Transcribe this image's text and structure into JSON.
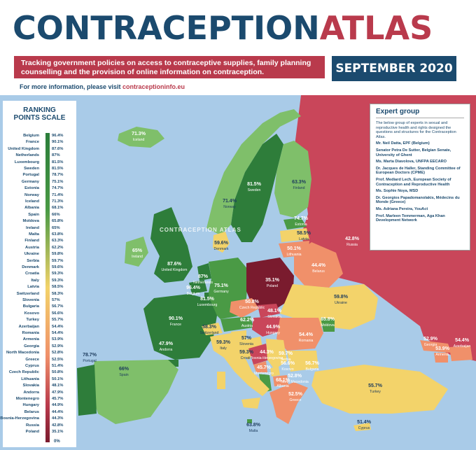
{
  "header": {
    "title_part1": "CONTRACEPTION",
    "title_part2": "ATLAS",
    "banner_text": "Tracking government policies on access to contraceptive supplies, family planning counselling and the provision of online information on contraception.",
    "date": "SEPTEMBER 2020",
    "info_prefix": "For more information, please visit ",
    "info_link": "contraceptioninfo.eu"
  },
  "watermark": "CONTRACEPTION ATLAS",
  "ranking": {
    "heading_line1": "RANKING",
    "heading_line2": "POINTS SCALE",
    "zero_label": "0%",
    "rows": [
      {
        "country": "Belgium",
        "value": "96.4%"
      },
      {
        "country": "France",
        "value": "90.1%"
      },
      {
        "country": "United Kingdom",
        "value": "87.6%"
      },
      {
        "country": "Netherlands",
        "value": "87%"
      },
      {
        "country": "Luxembourg",
        "value": "81.5%"
      },
      {
        "country": "Sweden",
        "value": "81.5%"
      },
      {
        "country": "Portugal",
        "value": "78.7%"
      },
      {
        "country": "Germany",
        "value": "75.1%"
      },
      {
        "country": "Estonia",
        "value": "74.7%"
      },
      {
        "country": "Norway",
        "value": "71.4%"
      },
      {
        "country": "Iceland",
        "value": "71.3%"
      },
      {
        "country": "Albania",
        "value": "68.1%"
      },
      {
        "country": "Spain",
        "value": "66%"
      },
      {
        "country": "Moldova",
        "value": "65.8%"
      },
      {
        "country": "Ireland",
        "value": "65%"
      },
      {
        "country": "Malta",
        "value": "63.8%"
      },
      {
        "country": "Finland",
        "value": "63.3%"
      },
      {
        "country": "Austria",
        "value": "62.2%"
      },
      {
        "country": "Ukraine",
        "value": "59.8%"
      },
      {
        "country": "Serbia",
        "value": "59.7%"
      },
      {
        "country": "Denmark",
        "value": "59.6%"
      },
      {
        "country": "Croatia",
        "value": "59.3%"
      },
      {
        "country": "Italy",
        "value": "59.3%"
      },
      {
        "country": "Latvia",
        "value": "58.5%"
      },
      {
        "country": "Switzerland",
        "value": "58.3%"
      },
      {
        "country": "Slovenia",
        "value": "57%"
      },
      {
        "country": "Bulgaria",
        "value": "56.7%"
      },
      {
        "country": "Kosovo",
        "value": "56.6%"
      },
      {
        "country": "Turkey",
        "value": "55.7%"
      },
      {
        "country": "Azerbaijan",
        "value": "54.4%"
      },
      {
        "country": "Romania",
        "value": "54.4%"
      },
      {
        "country": "Armenia",
        "value": "53.9%"
      },
      {
        "country": "Georgia",
        "value": "52.9%"
      },
      {
        "country": "North Macedonia",
        "value": "52.8%"
      },
      {
        "country": "Greece",
        "value": "52.5%"
      },
      {
        "country": "Cyprus",
        "value": "51.4%"
      },
      {
        "country": "Czech Republic",
        "value": "50.8%"
      },
      {
        "country": "Lithuania",
        "value": "50.1%"
      },
      {
        "country": "Slovakia",
        "value": "48.1%"
      },
      {
        "country": "Andorra",
        "value": "47.9%"
      },
      {
        "country": "Montenegro",
        "value": "45.7%"
      },
      {
        "country": "Hungary",
        "value": "44.9%"
      },
      {
        "country": "Belarus",
        "value": "44.4%"
      },
      {
        "country": "Bosnia-Herzegovina",
        "value": "44.3%"
      },
      {
        "country": "Russia",
        "value": "42.8%"
      },
      {
        "country": "Poland",
        "value": "35.1%"
      }
    ]
  },
  "expert_group": {
    "heading": "Expert group",
    "intro": "The below group of experts in sexual and reproductive health and rights designed the questions and structures for the Contraception Atlas.",
    "members": [
      "Mr. Neil Datta, EPF (Belgium)",
      "Senator Petra De Sutter, Belgian Senate, University of Ghent",
      "Ms. Marta Diavolova, UNFPA EECARO",
      "Dr. Jacques de Haller, Standing Committee of European Doctors (CPME)",
      "Prof. Mediard Lech, European Society of Contraception and Reproductive Health",
      "Ms. Sophie Noya, MSD",
      "Dr. Georgios Papadomanolakis, Médecins du Monde (Greece)",
      "Ms. Adriana Pereira, YouAct",
      "Prof. Marleen Temmerman, Aga Khan Development Network"
    ]
  },
  "map_labels": [
    {
      "value": "71.3%",
      "name": "Iceland"
    },
    {
      "value": "81.5%",
      "name": "Sweden"
    },
    {
      "value": "63.3%",
      "name": "Finland"
    },
    {
      "value": "71.4%",
      "name": "Norway"
    },
    {
      "value": "74.7%",
      "name": "Estonia"
    },
    {
      "value": "58.5%",
      "name": "Latvia"
    },
    {
      "value": "50.1%",
      "name": "Lithuania"
    },
    {
      "value": "42.8%",
      "name": "Russia"
    },
    {
      "value": "59.6%",
      "name": "Denmark"
    },
    {
      "value": "65%",
      "name": "Ireland"
    },
    {
      "value": "87.6%",
      "name": "United Kingdom"
    },
    {
      "value": "87%",
      "name": "Netherlands"
    },
    {
      "value": "96.4%",
      "name": "Belgium"
    },
    {
      "value": "75.1%",
      "name": "Germany"
    },
    {
      "value": "81.5%",
      "name": "Luxembourg"
    },
    {
      "value": "35.1%",
      "name": "Poland"
    },
    {
      "value": "44.4%",
      "name": "Belarus"
    },
    {
      "value": "59.8%",
      "name": "Ukraine"
    },
    {
      "value": "50.8%",
      "name": "Czech Republic"
    },
    {
      "value": "48.1%",
      "name": "Slovakia"
    },
    {
      "value": "90.1%",
      "name": "France"
    },
    {
      "value": "58.3%",
      "name": "Switzerland"
    },
    {
      "value": "62.2%",
      "name": "Austria"
    },
    {
      "value": "44.9%",
      "name": "Hungary"
    },
    {
      "value": "65.8%",
      "name": "Moldova"
    },
    {
      "value": "54.4%",
      "name": "Romania"
    },
    {
      "value": "57%",
      "name": "Slovenia"
    },
    {
      "value": "59.3%",
      "name": "Croatia"
    },
    {
      "value": "44.3%",
      "name": "Bosnia-Herzegovina"
    },
    {
      "value": "59.7%",
      "name": "Serbia"
    },
    {
      "value": "56.7%",
      "name": "Bulgaria"
    },
    {
      "value": "56.6%",
      "name": "Kosovo"
    },
    {
      "value": "45.7%",
      "name": "Montenegro"
    },
    {
      "value": "52.8%",
      "name": "North Macedonia"
    },
    {
      "value": "68.1%",
      "name": "Albania"
    },
    {
      "value": "52.5%",
      "name": "Greece"
    },
    {
      "value": "47.9%",
      "name": "Andorra"
    },
    {
      "value": "59.3%",
      "name": "Italy"
    },
    {
      "value": "78.7%",
      "name": "Portugal"
    },
    {
      "value": "66%",
      "name": "Spain"
    },
    {
      "value": "63.8%",
      "name": "Malta"
    },
    {
      "value": "55.7%",
      "name": "Turkey"
    },
    {
      "value": "51.4%",
      "name": "Cyprus"
    },
    {
      "value": "52.9%",
      "name": "Georgia"
    },
    {
      "value": "53.9%",
      "name": "Armenia"
    },
    {
      "value": "54.4%",
      "name": "Azerbaijan"
    }
  ],
  "colors": {
    "navy": "#1b4a6e",
    "crimson": "#b93a4c",
    "sea": "#a9cbe8",
    "dark_green": "#2e7d3a",
    "mid_green": "#4a9a45",
    "light_green": "#7fbf6a",
    "yellow": "#f3d36a",
    "orange": "#f0906a",
    "red": "#c9465a",
    "dark_red": "#7a1b2e"
  }
}
